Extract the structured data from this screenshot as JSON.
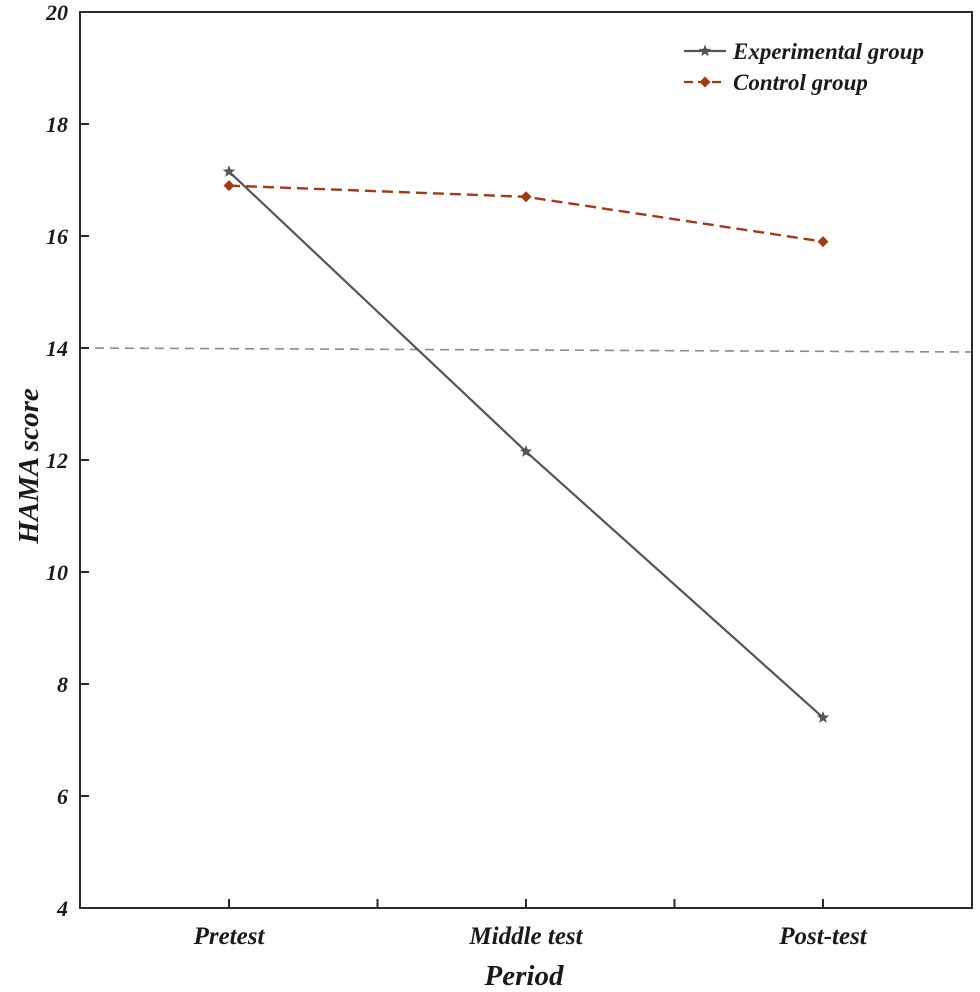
{
  "chart_data": {
    "type": "line",
    "title": "",
    "xlabel": "Period",
    "ylabel": "HAMA score",
    "categories": [
      "Pretest",
      "Middle test",
      "Post-test"
    ],
    "ylim": [
      4,
      20
    ],
    "yticks": [
      4,
      6,
      8,
      10,
      12,
      14,
      16,
      18,
      20
    ],
    "reference_line": {
      "y": 14,
      "style": "dashed"
    },
    "legend_position": "top-right",
    "series": [
      {
        "name": "Experimental group",
        "values": [
          17.15,
          12.15,
          7.4
        ],
        "color": "#555555",
        "line_style": "solid",
        "marker": "star"
      },
      {
        "name": "Control group",
        "values": [
          16.9,
          16.7,
          15.9
        ],
        "color": "#a33a17",
        "line_style": "dashed",
        "marker": "diamond"
      }
    ]
  }
}
